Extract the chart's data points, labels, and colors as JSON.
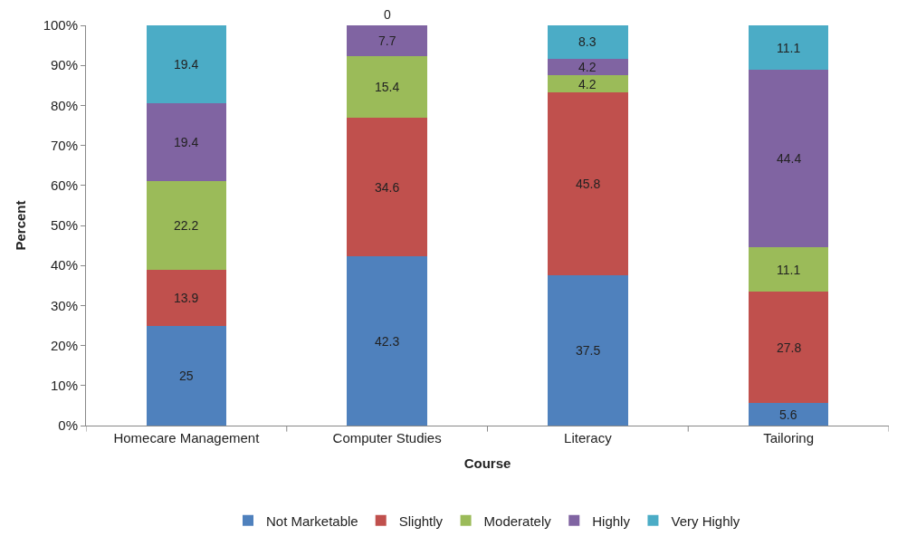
{
  "chart_data": {
    "type": "bar",
    "stacked": true,
    "xlabel": "Course",
    "ylabel": "Percent",
    "categories": [
      "Homecare Management",
      "Computer Studies",
      "Literacy",
      "Tailoring"
    ],
    "series": [
      {
        "name": "Not Marketable",
        "color": "#4f81bd",
        "values": [
          25,
          42.3,
          37.5,
          5.6
        ]
      },
      {
        "name": "Slightly",
        "color": "#c0504d",
        "values": [
          13.9,
          34.6,
          45.8,
          27.8
        ]
      },
      {
        "name": "Moderately",
        "color": "#9bbb59",
        "values": [
          22.2,
          15.4,
          4.2,
          11.1
        ]
      },
      {
        "name": "Highly",
        "color": "#8064a2",
        "values": [
          19.4,
          7.7,
          4.2,
          44.4
        ]
      },
      {
        "name": "Very Highly",
        "color": "#4bacc6",
        "values": [
          19.4,
          0,
          8.3,
          11.1
        ]
      }
    ],
    "ylim": [
      0,
      100
    ],
    "yticks": [
      {
        "value": 0,
        "label": "0%"
      },
      {
        "value": 10,
        "label": "10%"
      },
      {
        "value": 20,
        "label": "20%"
      },
      {
        "value": 30,
        "label": "30%"
      },
      {
        "value": 40,
        "label": "40%"
      },
      {
        "value": 50,
        "label": "50%"
      },
      {
        "value": 60,
        "label": "60%"
      },
      {
        "value": 70,
        "label": "70%"
      },
      {
        "value": 80,
        "label": "80%"
      },
      {
        "value": 90,
        "label": "90%"
      },
      {
        "value": 100,
        "label": "100%"
      }
    ],
    "data_labels": true,
    "legend": "bottom"
  }
}
